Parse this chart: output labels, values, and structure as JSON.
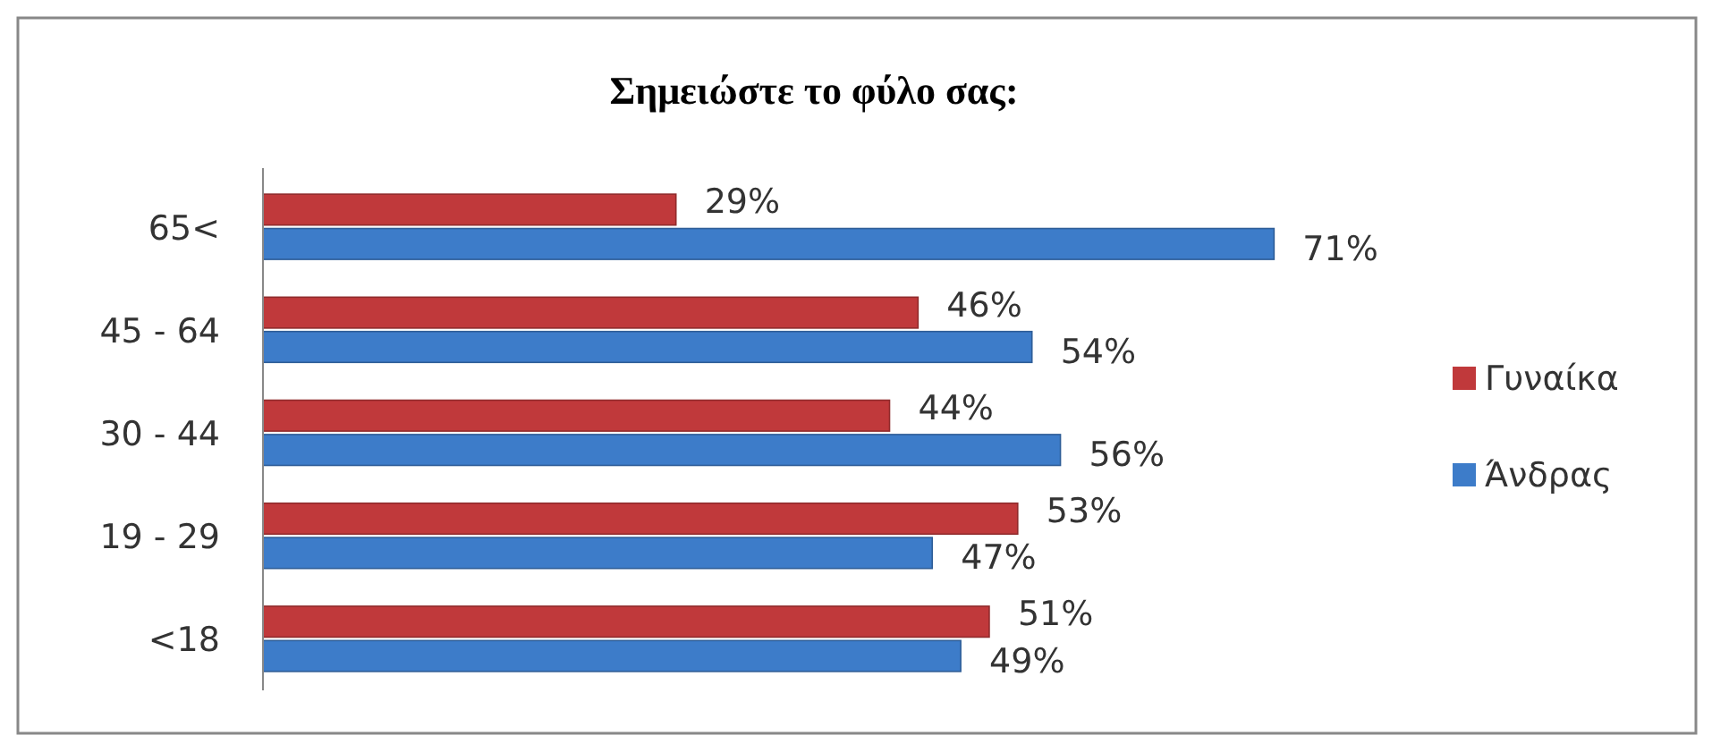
{
  "chart_data": {
    "type": "bar",
    "orientation": "horizontal",
    "title": "Σημειώστε το φύλο σας:",
    "categories": [
      "65<",
      "45 - 64",
      "30 - 44",
      "19 - 29",
      "<18"
    ],
    "series": [
      {
        "name": "Γυναίκα",
        "color": "#c0393b",
        "values": [
          29,
          46,
          44,
          53,
          51
        ],
        "value_labels": [
          "29%",
          "46%",
          "44%",
          "53%",
          "51%"
        ]
      },
      {
        "name": "Άνδρας",
        "color": "#3d7cc9",
        "values": [
          71,
          54,
          56,
          47,
          49
        ],
        "value_labels": [
          "71%",
          "54%",
          "56%",
          "47%",
          "49%"
        ]
      }
    ],
    "legend": "right"
  }
}
